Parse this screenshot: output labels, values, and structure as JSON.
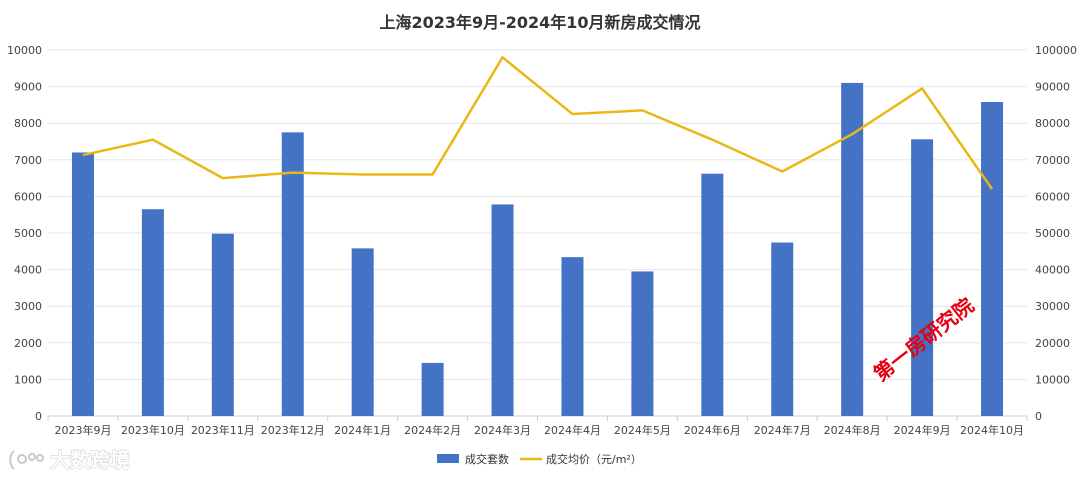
{
  "chart_data": {
    "type": "bar",
    "title": "上海2023年9月-2024年10月新房成交情况",
    "categories": [
      "2023年9月",
      "2023年10月",
      "2023年11月",
      "2023年12月",
      "2024年1月",
      "2024年2月",
      "2024年3月",
      "2024年4月",
      "2024年5月",
      "2024年6月",
      "2024年7月",
      "2024年8月",
      "2024年9月",
      "2024年10月"
    ],
    "series": [
      {
        "name": "成交套数",
        "kind": "bar",
        "axis": "left",
        "color": "#4472C4",
        "values": [
          7200,
          5650,
          4980,
          7750,
          4580,
          1450,
          5780,
          4340,
          3950,
          6620,
          4740,
          9100,
          7560,
          8580
        ]
      },
      {
        "name": "成交均价（元/m²）",
        "kind": "line",
        "axis": "right",
        "color": "#E8B817",
        "values": [
          71300,
          75500,
          65000,
          66500,
          66000,
          66000,
          98000,
          82500,
          83500,
          75500,
          66800,
          77000,
          89500,
          62000
        ]
      }
    ],
    "y_left": {
      "min": 0,
      "max": 10000,
      "step": 1000
    },
    "y_right": {
      "min": 0,
      "max": 100000,
      "step": 10000
    },
    "grid": true,
    "legend_position": "bottom-center"
  },
  "watermark": {
    "text": "大数跨境",
    "icon": "dashuo-logo-icon"
  },
  "stamp": {
    "text": "第一房研究院",
    "color": "#e60012"
  }
}
